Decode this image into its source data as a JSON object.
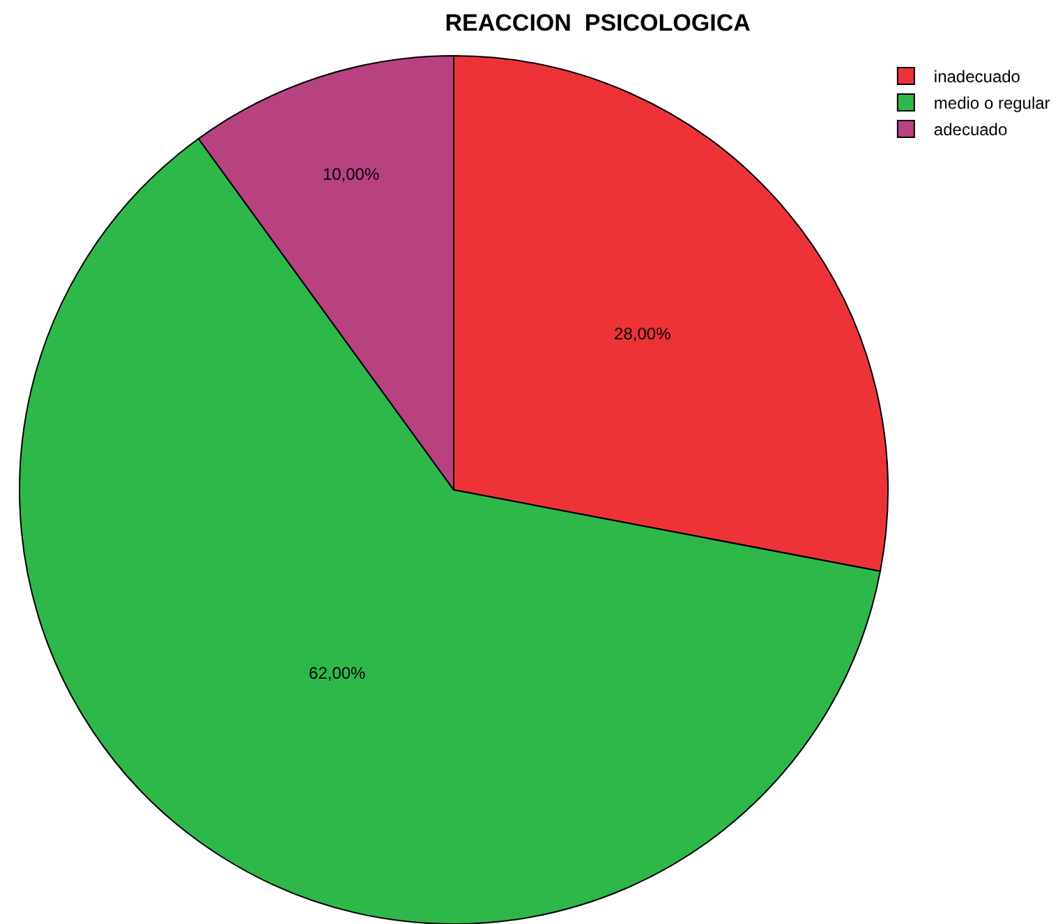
{
  "chart_data": {
    "type": "pie",
    "title": "REACCION  PSICOLOGICA",
    "categories": [
      "inadecuado",
      "medio o regular",
      "adecuado"
    ],
    "values": [
      28,
      62,
      10
    ],
    "value_labels": [
      "28,00%",
      "62,00%",
      "10,00%"
    ],
    "colors": [
      "#ee3338",
      "#2eb84a",
      "#b8417f"
    ],
    "legend": "top right"
  }
}
